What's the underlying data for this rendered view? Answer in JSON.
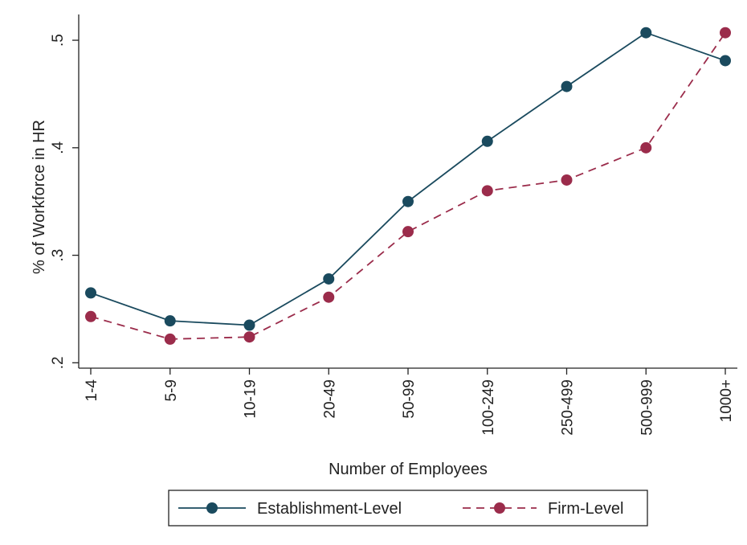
{
  "colors": {
    "establishment": "#1a4a5e",
    "firm": "#9b2c4b"
  },
  "chart_data": {
    "type": "line",
    "categories": [
      "1-4",
      "5-9",
      "10-19",
      "20-49",
      "50-99",
      "100-249",
      "250-499",
      "500-999",
      "1000+"
    ],
    "series": [
      {
        "name": "Establishment-Level",
        "line_style": "solid",
        "marker": "circle",
        "values": [
          0.265,
          0.239,
          0.235,
          0.278,
          0.35,
          0.406,
          0.457,
          0.507,
          0.481
        ]
      },
      {
        "name": "Firm-Level",
        "line_style": "dashed",
        "marker": "circle",
        "values": [
          0.243,
          0.222,
          0.224,
          0.261,
          0.322,
          0.36,
          0.37,
          0.4,
          0.507
        ]
      }
    ],
    "xlabel": "Number of Employees",
    "ylabel": "% of Workforce in HR",
    "yticks": [
      0.2,
      0.3,
      0.4,
      0.5
    ],
    "ytick_labels": [
      ".2",
      ".3",
      ".4",
      ".5"
    ],
    "ylim": [
      0.195,
      0.515
    ],
    "grid": false,
    "legend_position": "bottom"
  }
}
